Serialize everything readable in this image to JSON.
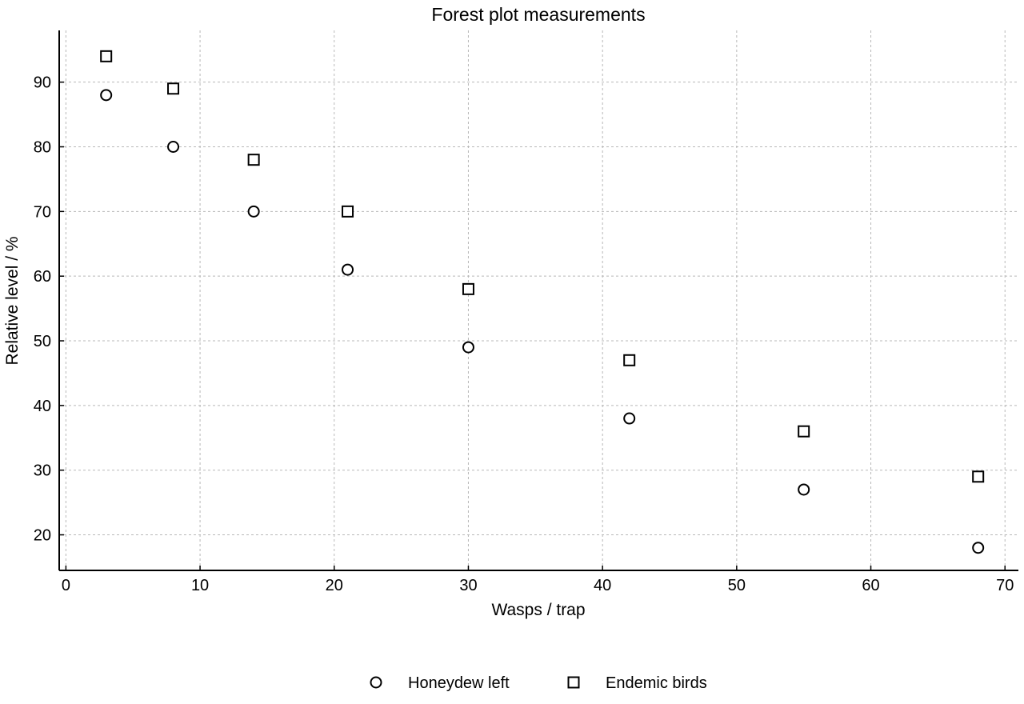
{
  "chart_data": {
    "type": "scatter",
    "title": "Forest plot measurements",
    "xlabel": "Wasps / trap",
    "ylabel": "Relative level / %",
    "xlim": [
      -0.5,
      71
    ],
    "ylim": [
      14.5,
      98
    ],
    "xticks": [
      0,
      10,
      20,
      30,
      40,
      50,
      60,
      70
    ],
    "yticks": [
      20,
      30,
      40,
      50,
      60,
      70,
      80,
      90
    ],
    "grid": true,
    "legend_position": "bottom-center",
    "x": [
      3,
      8,
      14,
      21,
      30,
      42,
      55,
      68
    ],
    "series": [
      {
        "name": "Honeydew left",
        "marker": "circle",
        "values": [
          88,
          80,
          70,
          61,
          49,
          38,
          27,
          18
        ]
      },
      {
        "name": "Endemic birds",
        "marker": "square",
        "values": [
          94,
          89,
          78,
          70,
          58,
          47,
          36,
          29
        ]
      }
    ],
    "colors": {
      "marker_edge": "#000000",
      "marker_fill": "#ffffff",
      "grid": "#b8b8b8"
    }
  }
}
